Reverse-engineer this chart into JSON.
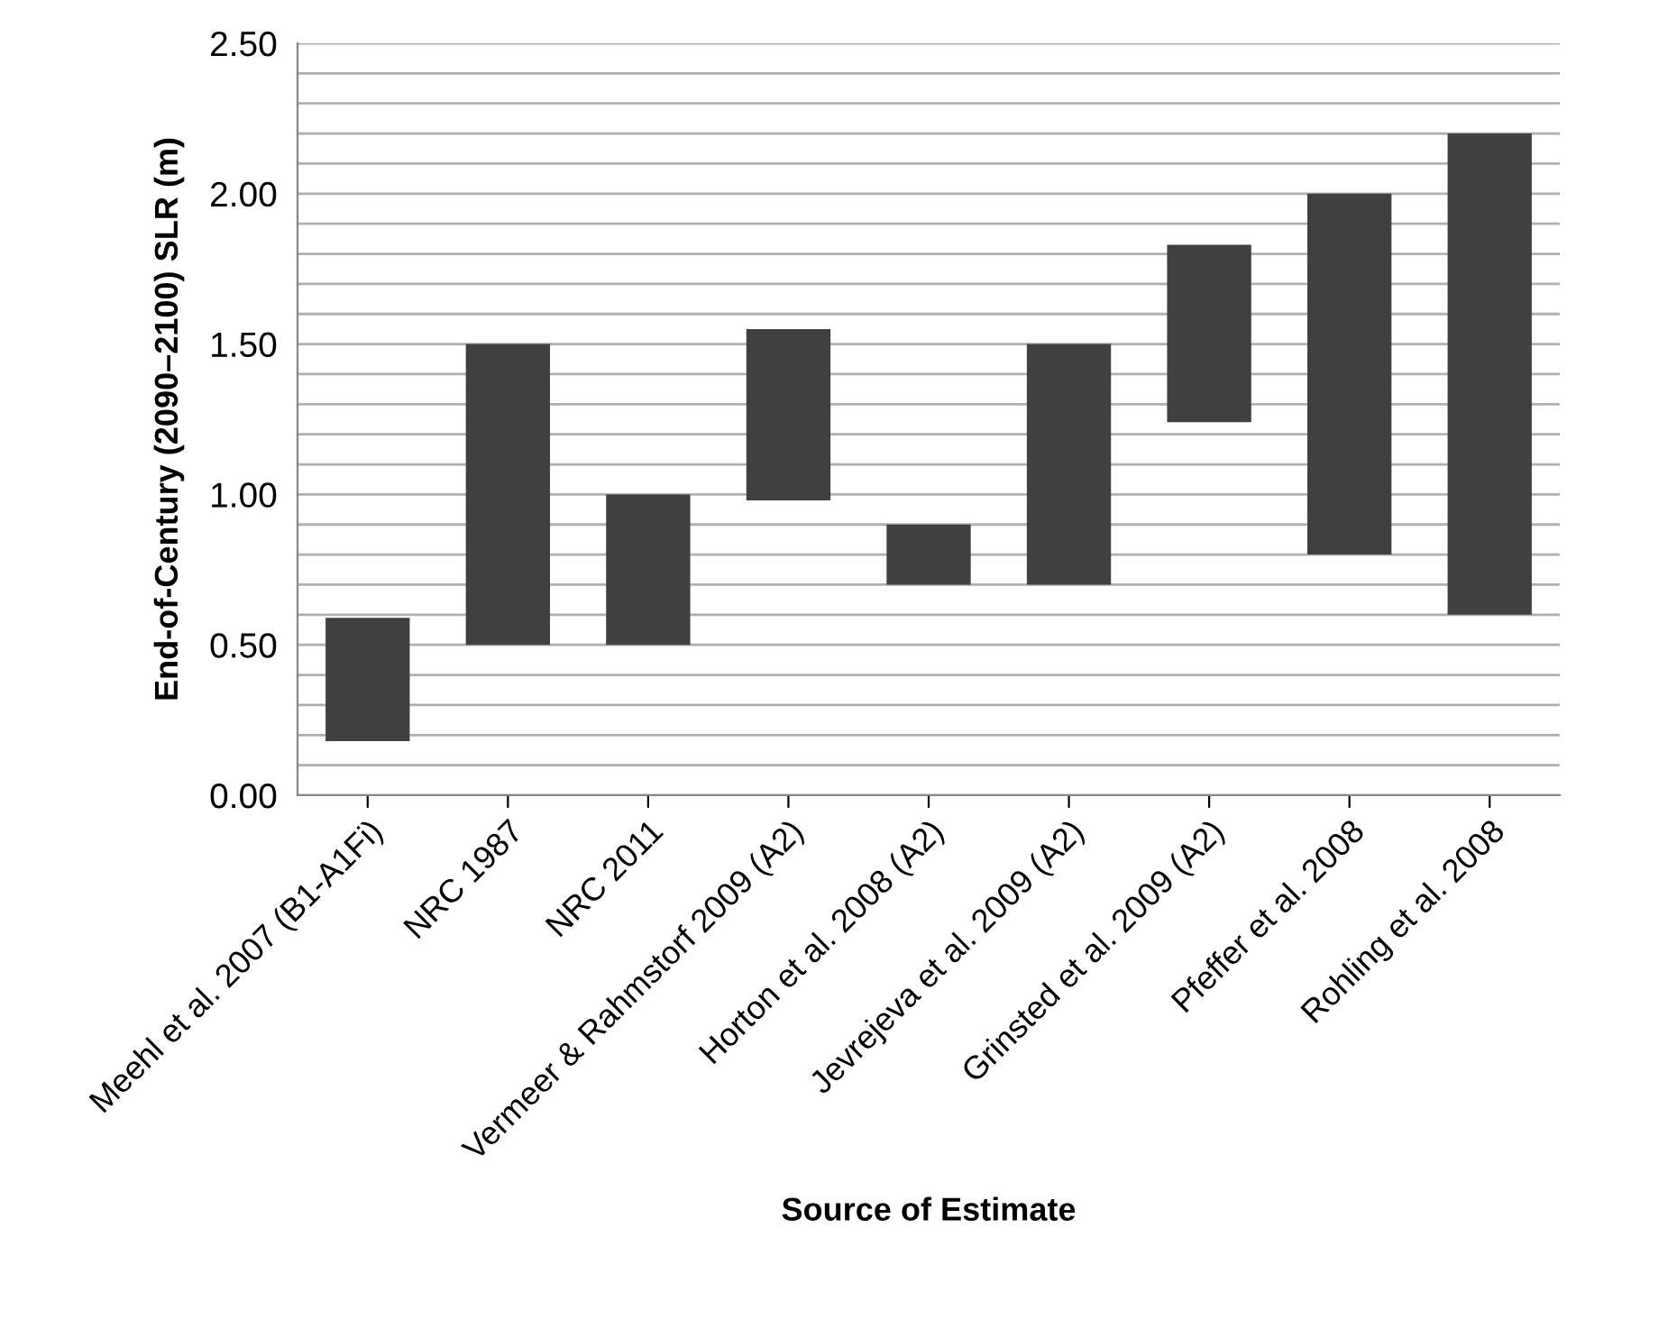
{
  "chart_data": {
    "type": "bar",
    "xlabel": "Source of Estimate",
    "ylabel": "End-of-Century (2090–2100) SLR (m)",
    "categories": [
      "Meehl et al. 2007 (B1-A1Fi)",
      "NRC 1987",
      "NRC 2011",
      "Vermeer & Rahmstorf 2009 (A2)",
      "Horton et al. 2008 (A2)",
      "Jevrejeva et al. 2009 (A2)",
      "Grinsted et al. 2009 (A2)",
      "Pfeffer et al. 2008",
      "Rohling et al. 2008"
    ],
    "base": [
      0.18,
      0.5,
      0.5,
      0.98,
      0.7,
      0.7,
      1.24,
      0.8,
      0.6
    ],
    "values": [
      0.41,
      1.0,
      0.5,
      0.57,
      0.2,
      0.8,
      0.59,
      1.2,
      1.6
    ],
    "color": "#404040",
    "ylim": [
      0,
      2.5
    ],
    "yticks": [
      {
        "value": 0,
        "label": "0.00"
      },
      {
        "value": 0.1,
        "label": null
      },
      {
        "value": 0.2,
        "label": null
      },
      {
        "value": 0.3,
        "label": null
      },
      {
        "value": 0.4,
        "label": null
      },
      {
        "value": 0.5,
        "label": "0.50"
      },
      {
        "value": 0.6,
        "label": null
      },
      {
        "value": 0.7,
        "label": null
      },
      {
        "value": 0.8,
        "label": null
      },
      {
        "value": 0.9,
        "label": null
      },
      {
        "value": 1.0,
        "label": "1.00"
      },
      {
        "value": 1.1,
        "label": null
      },
      {
        "value": 1.2,
        "label": null
      },
      {
        "value": 1.3,
        "label": null
      },
      {
        "value": 1.4,
        "label": null
      },
      {
        "value": 1.5,
        "label": "1.50"
      },
      {
        "value": 1.6,
        "label": null
      },
      {
        "value": 1.7,
        "label": null
      },
      {
        "value": 1.8,
        "label": null
      },
      {
        "value": 1.9,
        "label": null
      },
      {
        "value": 2.0,
        "label": "2.00"
      },
      {
        "value": 2.1,
        "label": null
      },
      {
        "value": 2.2,
        "label": null
      },
      {
        "value": 2.3,
        "label": null
      },
      {
        "value": 2.4,
        "label": null
      },
      {
        "value": 2.5,
        "label": "2.50"
      }
    ],
    "grid": "y"
  }
}
